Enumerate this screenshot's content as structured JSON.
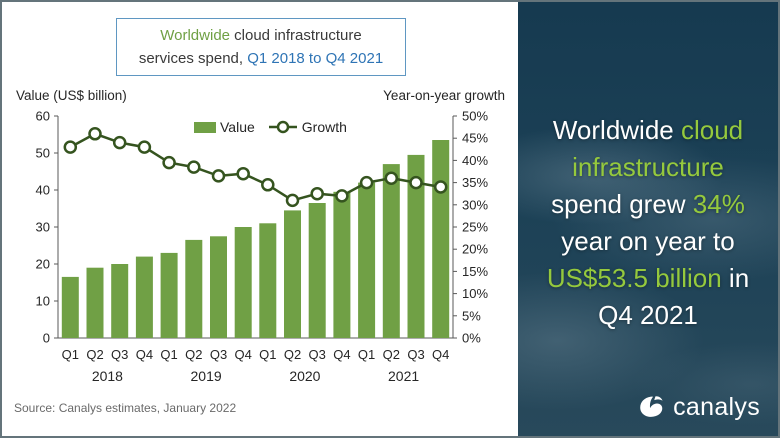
{
  "colors": {
    "bar": "#70a045",
    "line": "#35541f",
    "title_green": "#6fa044",
    "title_blue": "#2e74b5",
    "title_dark": "#3a3a3a",
    "axis_line": "#595959",
    "axis_text": "#262626",
    "sidebar_green": "#95c93d",
    "sidebar_white": "#ffffff"
  },
  "panel": {
    "title_lines": [
      [
        {
          "text": "Worldwide",
          "c": "title_green"
        },
        {
          "text": " cloud infrastructure",
          "c": "title_dark"
        }
      ],
      [
        {
          "text": "services spend, ",
          "c": "title_dark"
        },
        {
          "text": "Q1 2018 to Q4 2021",
          "c": "title_blue"
        }
      ]
    ],
    "left_axis_title": "Value (US$ billion)",
    "right_axis_title": "Year-on-year growth",
    "legend": {
      "value_label": "Value",
      "growth_label": "Growth"
    },
    "source": "Source: Canalys estimates, January 2022"
  },
  "chart_data": {
    "type": "bar",
    "note": "grouped quarterly bar chart with overlaid line on secondary axis",
    "categories": [
      "Q1",
      "Q2",
      "Q3",
      "Q4",
      "Q1",
      "Q2",
      "Q3",
      "Q4",
      "Q1",
      "Q2",
      "Q3",
      "Q4",
      "Q1",
      "Q2",
      "Q3",
      "Q4"
    ],
    "years": [
      "2018",
      "2019",
      "2020",
      "2021"
    ],
    "series": [
      {
        "name": "Value",
        "type": "bar",
        "axis": "left",
        "values": [
          16.5,
          19,
          20,
          22,
          23,
          26.5,
          27.5,
          30,
          31,
          34.5,
          36.5,
          39.5,
          42,
          47,
          49.5,
          53.5
        ]
      },
      {
        "name": "Growth",
        "type": "line",
        "axis": "right",
        "values": [
          43,
          46,
          44,
          43,
          39.5,
          38.5,
          36.5,
          37,
          34.5,
          31,
          32.5,
          32,
          35,
          36,
          35,
          34
        ]
      }
    ],
    "left_axis": {
      "label": "Value (US$ billion)",
      "min": 0,
      "max": 60,
      "step": 10
    },
    "right_axis": {
      "label": "Year-on-year growth",
      "min": 0,
      "max": 50,
      "step": 5,
      "format": "percent"
    },
    "legend_position": "top-inside",
    "grid": false
  },
  "sidebar": {
    "headline_lines": [
      [
        {
          "text": "Worldwide ",
          "c": "sidebar_white"
        },
        {
          "text": "cloud",
          "c": "sidebar_green"
        }
      ],
      [
        {
          "text": "infrastructure",
          "c": "sidebar_green"
        }
      ],
      [
        {
          "text": "spend grew ",
          "c": "sidebar_white"
        },
        {
          "text": "34%",
          "c": "sidebar_green"
        }
      ],
      [
        {
          "text": "year on year to",
          "c": "sidebar_white"
        }
      ],
      [
        {
          "text": "US$53.5 billion",
          "c": "sidebar_green"
        },
        {
          "text": " in",
          "c": "sidebar_white"
        }
      ],
      [
        {
          "text": "Q4 2021",
          "c": "sidebar_white"
        }
      ]
    ],
    "logo_text": "canalys"
  }
}
